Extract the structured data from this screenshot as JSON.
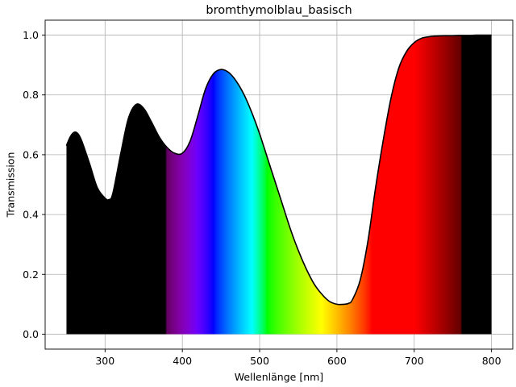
{
  "chart_data": {
    "type": "area",
    "title": "bromthymolblau_basisch",
    "xlabel": "Wellenlänge [nm]",
    "ylabel": "Transmission",
    "xlim": [
      222.5,
      827.5
    ],
    "ylim": [
      -0.05,
      1.05
    ],
    "xticks": [
      300,
      400,
      500,
      600,
      700,
      800
    ],
    "yticks": [
      0.0,
      0.2,
      0.4,
      0.6,
      0.8,
      1.0
    ],
    "xtick_labels": [
      "300",
      "400",
      "500",
      "600",
      "700",
      "800"
    ],
    "ytick_labels": [
      "0.0",
      "0.2",
      "0.4",
      "0.6",
      "0.8",
      "1.0"
    ],
    "grid": true,
    "fill": "visible-spectrum colors under the curve; black outside 380–760 nm",
    "series": [
      {
        "line_color": "#000000",
        "x": [
          250,
          255,
          260,
          265,
          270,
          280,
          290,
          300,
          305,
          310,
          320,
          330,
          340,
          350,
          360,
          370,
          380,
          390,
          400,
          410,
          420,
          430,
          440,
          450,
          460,
          470,
          480,
          490,
          500,
          510,
          520,
          530,
          540,
          550,
          560,
          570,
          580,
          590,
          600,
          610,
          615,
          620,
          630,
          640,
          650,
          660,
          670,
          680,
          690,
          700,
          710,
          720,
          730,
          740,
          750,
          760,
          770,
          780,
          790,
          800
        ],
        "y": [
          0.63,
          0.66,
          0.675,
          0.67,
          0.645,
          0.57,
          0.49,
          0.455,
          0.45,
          0.47,
          0.6,
          0.72,
          0.768,
          0.755,
          0.71,
          0.66,
          0.625,
          0.605,
          0.605,
          0.645,
          0.73,
          0.82,
          0.87,
          0.885,
          0.875,
          0.845,
          0.8,
          0.74,
          0.67,
          0.59,
          0.51,
          0.43,
          0.35,
          0.28,
          0.22,
          0.17,
          0.135,
          0.11,
          0.1,
          0.1,
          0.103,
          0.115,
          0.18,
          0.31,
          0.49,
          0.65,
          0.79,
          0.89,
          0.945,
          0.975,
          0.99,
          0.995,
          0.997,
          0.998,
          0.998,
          0.999,
          0.999,
          1.0,
          1.0,
          1.0
        ]
      }
    ]
  }
}
